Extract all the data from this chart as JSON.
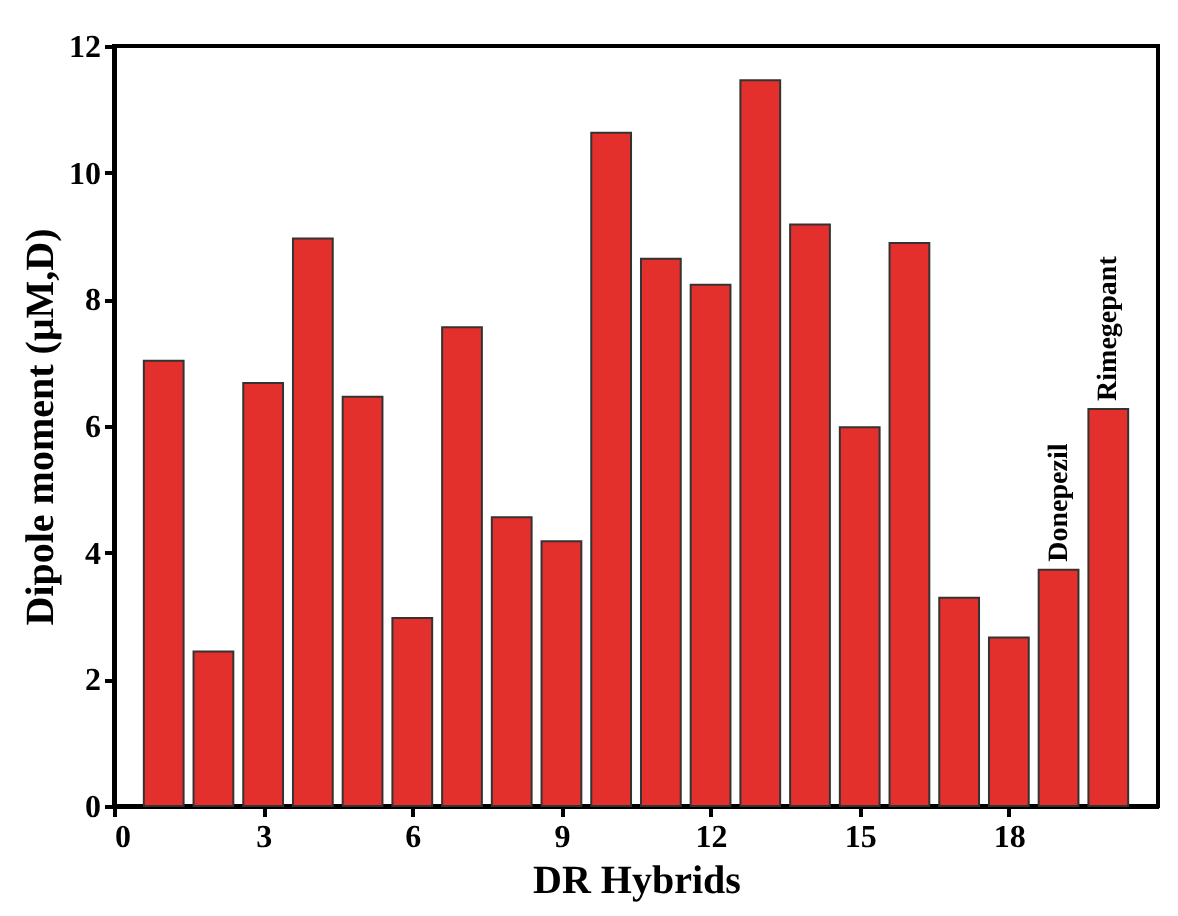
{
  "chart_data": {
    "type": "bar",
    "xlabel": "DR Hybrids",
    "ylabel": "Dipole moment (μM,D)",
    "x": [
      1,
      2,
      3,
      4,
      5,
      6,
      7,
      8,
      9,
      10,
      11,
      12,
      13,
      14,
      15,
      16,
      17,
      18,
      19,
      20
    ],
    "values": [
      7.03,
      2.44,
      6.68,
      8.96,
      6.46,
      2.97,
      7.56,
      4.56,
      4.18,
      10.63,
      8.64,
      8.23,
      11.46,
      9.18,
      5.98,
      8.89,
      3.29,
      2.66,
      3.73,
      6.27
    ],
    "color": "#e3302c",
    "xlim": [
      0,
      21
    ],
    "xticks": [
      0,
      3,
      6,
      9,
      12,
      15,
      18
    ],
    "ylim": [
      0,
      12
    ],
    "yticks": [
      0,
      2,
      4,
      6,
      8,
      10,
      12
    ],
    "annotations": [
      {
        "text": "Donepezil",
        "x": 19,
        "y": 3.73
      },
      {
        "text": "Rimegepant",
        "x": 20,
        "y": 6.27
      }
    ],
    "grid": false
  }
}
